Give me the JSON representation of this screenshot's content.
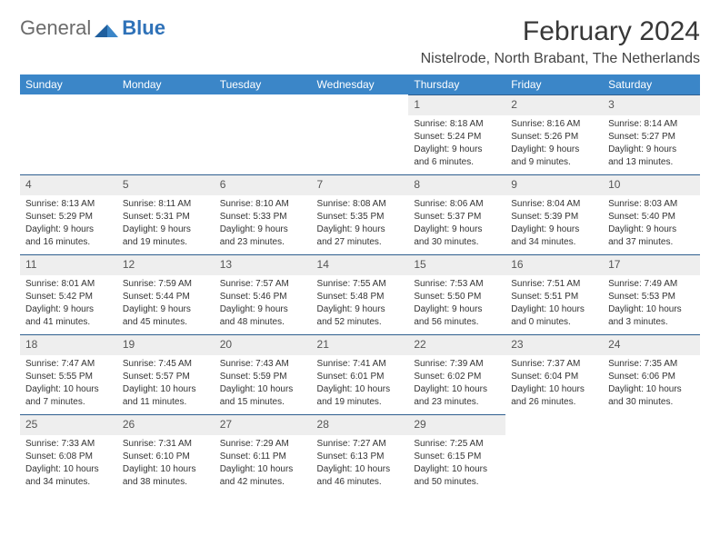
{
  "logo": {
    "text1": "General",
    "text2": "Blue"
  },
  "title": "February 2024",
  "location": "Nistelrode, North Brabant, The Netherlands",
  "colors": {
    "header_bg": "#3b86c8",
    "header_text": "#ffffff",
    "daynum_bg": "#eeeeee",
    "daynum_border": "#2f5f8f",
    "body_text": "#333333",
    "logo_gray": "#6b6b6b",
    "logo_blue": "#2f72b8"
  },
  "day_headers": [
    "Sunday",
    "Monday",
    "Tuesday",
    "Wednesday",
    "Thursday",
    "Friday",
    "Saturday"
  ],
  "weeks": [
    [
      null,
      null,
      null,
      null,
      {
        "n": "1",
        "sr": "Sunrise: 8:18 AM",
        "ss": "Sunset: 5:24 PM",
        "d1": "Daylight: 9 hours",
        "d2": "and 6 minutes."
      },
      {
        "n": "2",
        "sr": "Sunrise: 8:16 AM",
        "ss": "Sunset: 5:26 PM",
        "d1": "Daylight: 9 hours",
        "d2": "and 9 minutes."
      },
      {
        "n": "3",
        "sr": "Sunrise: 8:14 AM",
        "ss": "Sunset: 5:27 PM",
        "d1": "Daylight: 9 hours",
        "d2": "and 13 minutes."
      }
    ],
    [
      {
        "n": "4",
        "sr": "Sunrise: 8:13 AM",
        "ss": "Sunset: 5:29 PM",
        "d1": "Daylight: 9 hours",
        "d2": "and 16 minutes."
      },
      {
        "n": "5",
        "sr": "Sunrise: 8:11 AM",
        "ss": "Sunset: 5:31 PM",
        "d1": "Daylight: 9 hours",
        "d2": "and 19 minutes."
      },
      {
        "n": "6",
        "sr": "Sunrise: 8:10 AM",
        "ss": "Sunset: 5:33 PM",
        "d1": "Daylight: 9 hours",
        "d2": "and 23 minutes."
      },
      {
        "n": "7",
        "sr": "Sunrise: 8:08 AM",
        "ss": "Sunset: 5:35 PM",
        "d1": "Daylight: 9 hours",
        "d2": "and 27 minutes."
      },
      {
        "n": "8",
        "sr": "Sunrise: 8:06 AM",
        "ss": "Sunset: 5:37 PM",
        "d1": "Daylight: 9 hours",
        "d2": "and 30 minutes."
      },
      {
        "n": "9",
        "sr": "Sunrise: 8:04 AM",
        "ss": "Sunset: 5:39 PM",
        "d1": "Daylight: 9 hours",
        "d2": "and 34 minutes."
      },
      {
        "n": "10",
        "sr": "Sunrise: 8:03 AM",
        "ss": "Sunset: 5:40 PM",
        "d1": "Daylight: 9 hours",
        "d2": "and 37 minutes."
      }
    ],
    [
      {
        "n": "11",
        "sr": "Sunrise: 8:01 AM",
        "ss": "Sunset: 5:42 PM",
        "d1": "Daylight: 9 hours",
        "d2": "and 41 minutes."
      },
      {
        "n": "12",
        "sr": "Sunrise: 7:59 AM",
        "ss": "Sunset: 5:44 PM",
        "d1": "Daylight: 9 hours",
        "d2": "and 45 minutes."
      },
      {
        "n": "13",
        "sr": "Sunrise: 7:57 AM",
        "ss": "Sunset: 5:46 PM",
        "d1": "Daylight: 9 hours",
        "d2": "and 48 minutes."
      },
      {
        "n": "14",
        "sr": "Sunrise: 7:55 AM",
        "ss": "Sunset: 5:48 PM",
        "d1": "Daylight: 9 hours",
        "d2": "and 52 minutes."
      },
      {
        "n": "15",
        "sr": "Sunrise: 7:53 AM",
        "ss": "Sunset: 5:50 PM",
        "d1": "Daylight: 9 hours",
        "d2": "and 56 minutes."
      },
      {
        "n": "16",
        "sr": "Sunrise: 7:51 AM",
        "ss": "Sunset: 5:51 PM",
        "d1": "Daylight: 10 hours",
        "d2": "and 0 minutes."
      },
      {
        "n": "17",
        "sr": "Sunrise: 7:49 AM",
        "ss": "Sunset: 5:53 PM",
        "d1": "Daylight: 10 hours",
        "d2": "and 3 minutes."
      }
    ],
    [
      {
        "n": "18",
        "sr": "Sunrise: 7:47 AM",
        "ss": "Sunset: 5:55 PM",
        "d1": "Daylight: 10 hours",
        "d2": "and 7 minutes."
      },
      {
        "n": "19",
        "sr": "Sunrise: 7:45 AM",
        "ss": "Sunset: 5:57 PM",
        "d1": "Daylight: 10 hours",
        "d2": "and 11 minutes."
      },
      {
        "n": "20",
        "sr": "Sunrise: 7:43 AM",
        "ss": "Sunset: 5:59 PM",
        "d1": "Daylight: 10 hours",
        "d2": "and 15 minutes."
      },
      {
        "n": "21",
        "sr": "Sunrise: 7:41 AM",
        "ss": "Sunset: 6:01 PM",
        "d1": "Daylight: 10 hours",
        "d2": "and 19 minutes."
      },
      {
        "n": "22",
        "sr": "Sunrise: 7:39 AM",
        "ss": "Sunset: 6:02 PM",
        "d1": "Daylight: 10 hours",
        "d2": "and 23 minutes."
      },
      {
        "n": "23",
        "sr": "Sunrise: 7:37 AM",
        "ss": "Sunset: 6:04 PM",
        "d1": "Daylight: 10 hours",
        "d2": "and 26 minutes."
      },
      {
        "n": "24",
        "sr": "Sunrise: 7:35 AM",
        "ss": "Sunset: 6:06 PM",
        "d1": "Daylight: 10 hours",
        "d2": "and 30 minutes."
      }
    ],
    [
      {
        "n": "25",
        "sr": "Sunrise: 7:33 AM",
        "ss": "Sunset: 6:08 PM",
        "d1": "Daylight: 10 hours",
        "d2": "and 34 minutes."
      },
      {
        "n": "26",
        "sr": "Sunrise: 7:31 AM",
        "ss": "Sunset: 6:10 PM",
        "d1": "Daylight: 10 hours",
        "d2": "and 38 minutes."
      },
      {
        "n": "27",
        "sr": "Sunrise: 7:29 AM",
        "ss": "Sunset: 6:11 PM",
        "d1": "Daylight: 10 hours",
        "d2": "and 42 minutes."
      },
      {
        "n": "28",
        "sr": "Sunrise: 7:27 AM",
        "ss": "Sunset: 6:13 PM",
        "d1": "Daylight: 10 hours",
        "d2": "and 46 minutes."
      },
      {
        "n": "29",
        "sr": "Sunrise: 7:25 AM",
        "ss": "Sunset: 6:15 PM",
        "d1": "Daylight: 10 hours",
        "d2": "and 50 minutes."
      },
      null,
      null
    ]
  ]
}
